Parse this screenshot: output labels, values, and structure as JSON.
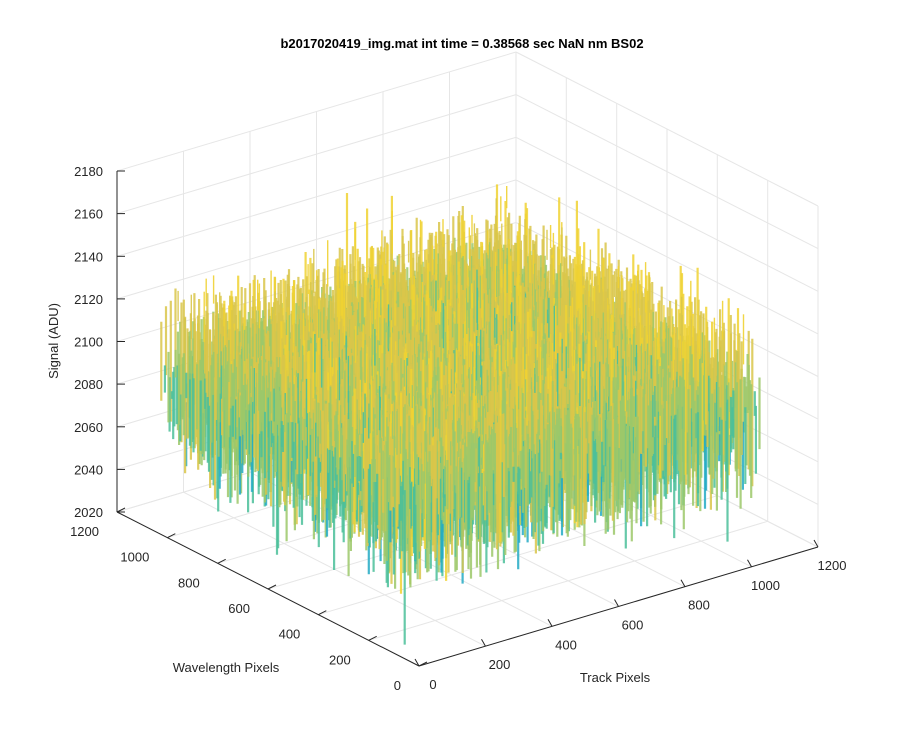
{
  "chart_data": {
    "type": "surface3d",
    "title": "b2017020419_img.mat int time = 0.38568 sec  NaN nm BS02",
    "xlabel": "Track Pixels",
    "ylabel": "Wavelength Pixels",
    "zlabel": "Signal (ADU)",
    "xlim": [
      0,
      1200
    ],
    "ylim": [
      0,
      1200
    ],
    "zlim": [
      2020,
      2180
    ],
    "x_ticks": [
      0,
      200,
      400,
      600,
      800,
      1000,
      1200
    ],
    "y_ticks": [
      0,
      200,
      400,
      600,
      800,
      1000,
      1200
    ],
    "z_ticks": [
      2020,
      2040,
      2060,
      2080,
      2100,
      2120,
      2140,
      2160,
      2180
    ],
    "x_tick_labels": [
      "0",
      "200",
      "400",
      "600",
      "800",
      "1000",
      "1200"
    ],
    "y_tick_labels": [
      "0",
      "200",
      "400",
      "600",
      "800",
      "1000",
      "1200"
    ],
    "z_tick_labels": [
      "2020",
      "2040",
      "2060",
      "2080",
      "2100",
      "2120",
      "2140",
      "2160",
      "2180"
    ],
    "data_extent": {
      "x": [
        0,
        1024
      ],
      "y": [
        0,
        1024
      ]
    },
    "surface_level_range": [
      2040,
      2150
    ],
    "surface_mean": 2090,
    "colormap": [
      "#0072bd",
      "#1a8fd4",
      "#23aac4",
      "#4bbf9a",
      "#9cc86a",
      "#d9c64a",
      "#f0d232"
    ],
    "grid": true
  }
}
